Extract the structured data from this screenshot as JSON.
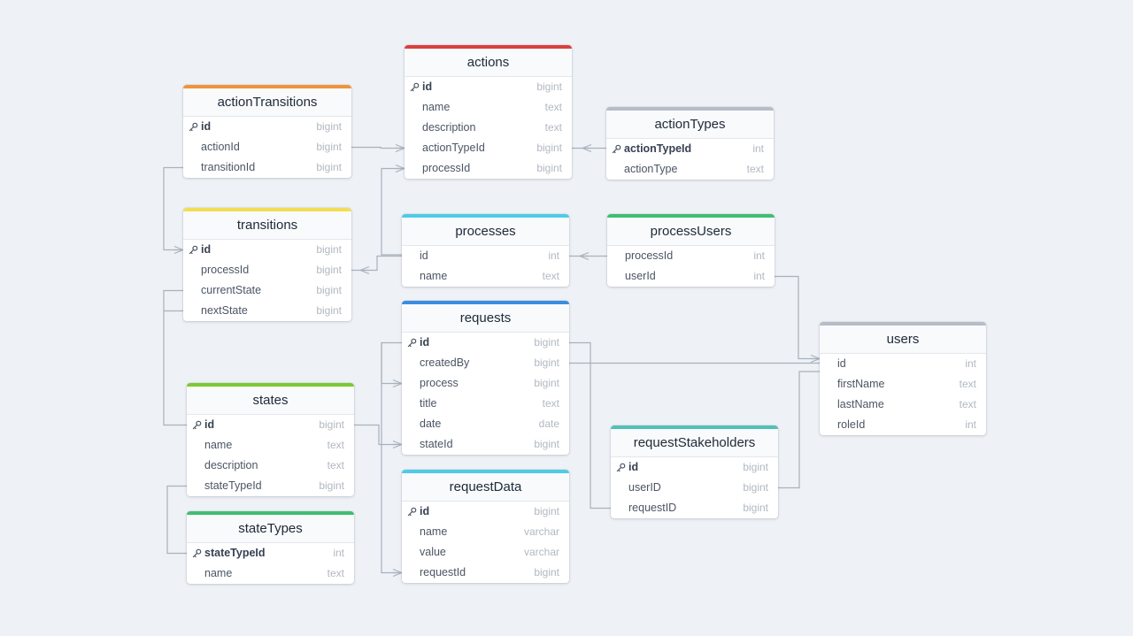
{
  "diagram": {
    "colors": {
      "background": "#eef2f6",
      "connector": "#a8b1bc"
    },
    "tables": [
      {
        "id": "actions",
        "name": "actions",
        "accent": "#dc3f3f",
        "fields": [
          {
            "name": "id",
            "type": "bigint",
            "pk": true
          },
          {
            "name": "name",
            "type": "text"
          },
          {
            "name": "description",
            "type": "text"
          },
          {
            "name": "actionTypeId",
            "type": "bigint"
          },
          {
            "name": "processId",
            "type": "bigint"
          }
        ]
      },
      {
        "id": "actionTransitions",
        "name": "actionTransitions",
        "accent": "#f0933e",
        "fields": [
          {
            "name": "id",
            "type": "bigint",
            "pk": true
          },
          {
            "name": "actionId",
            "type": "bigint"
          },
          {
            "name": "transitionId",
            "type": "bigint"
          }
        ]
      },
      {
        "id": "actionTypes",
        "name": "actionTypes",
        "accent": "#b6bdc6",
        "fields": [
          {
            "name": "actionTypeId",
            "type": "int",
            "pk": true
          },
          {
            "name": "actionType",
            "type": "text"
          }
        ]
      },
      {
        "id": "transitions",
        "name": "transitions",
        "accent": "#f3dd52",
        "fields": [
          {
            "name": "id",
            "type": "bigint",
            "pk": true
          },
          {
            "name": "processId",
            "type": "bigint"
          },
          {
            "name": "currentState",
            "type": "bigint"
          },
          {
            "name": "nextState",
            "type": "bigint"
          }
        ]
      },
      {
        "id": "processes",
        "name": "processes",
        "accent": "#4fcbe6",
        "fields": [
          {
            "name": "id",
            "type": "int"
          },
          {
            "name": "name",
            "type": "text"
          }
        ]
      },
      {
        "id": "processUsers",
        "name": "processUsers",
        "accent": "#3fbe73",
        "fields": [
          {
            "name": "processId",
            "type": "int"
          },
          {
            "name": "userId",
            "type": "int"
          }
        ]
      },
      {
        "id": "requests",
        "name": "requests",
        "accent": "#3a8de0",
        "fields": [
          {
            "name": "id",
            "type": "bigint",
            "pk": true
          },
          {
            "name": "createdBy",
            "type": "bigint"
          },
          {
            "name": "process",
            "type": "bigint"
          },
          {
            "name": "title",
            "type": "text"
          },
          {
            "name": "date",
            "type": "date"
          },
          {
            "name": "stateId",
            "type": "bigint"
          }
        ]
      },
      {
        "id": "users",
        "name": "users",
        "accent": "#b6bdc6",
        "fields": [
          {
            "name": "id",
            "type": "int"
          },
          {
            "name": "firstName",
            "type": "text"
          },
          {
            "name": "lastName",
            "type": "text"
          },
          {
            "name": "roleId",
            "type": "int"
          }
        ]
      },
      {
        "id": "states",
        "name": "states",
        "accent": "#7cc832",
        "fields": [
          {
            "name": "id",
            "type": "bigint",
            "pk": true
          },
          {
            "name": "name",
            "type": "text"
          },
          {
            "name": "description",
            "type": "text"
          },
          {
            "name": "stateTypeId",
            "type": "bigint"
          }
        ]
      },
      {
        "id": "requestStakeholders",
        "name": "requestStakeholders",
        "accent": "#52c0b6",
        "fields": [
          {
            "name": "id",
            "type": "bigint",
            "pk": true
          },
          {
            "name": "userID",
            "type": "bigint"
          },
          {
            "name": "requestID",
            "type": "bigint"
          }
        ]
      },
      {
        "id": "requestData",
        "name": "requestData",
        "accent": "#4fcbe6",
        "fields": [
          {
            "name": "id",
            "type": "bigint",
            "pk": true
          },
          {
            "name": "name",
            "type": "varchar"
          },
          {
            "name": "value",
            "type": "varchar"
          },
          {
            "name": "requestId",
            "type": "bigint"
          }
        ]
      },
      {
        "id": "stateTypes",
        "name": "stateTypes",
        "accent": "#3fbe73",
        "fields": [
          {
            "name": "stateTypeId",
            "type": "int",
            "pk": true
          },
          {
            "name": "name",
            "type": "text"
          }
        ]
      }
    ],
    "relationships": [
      {
        "from": "actionTransitions.actionId",
        "to": "actions.id"
      },
      {
        "from": "actionTransitions.transitionId",
        "to": "transitions.id"
      },
      {
        "from": "actions.actionTypeId",
        "to": "actionTypes.actionTypeId"
      },
      {
        "from": "actions.processId",
        "to": "processes.id"
      },
      {
        "from": "transitions.processId",
        "to": "processes.id"
      },
      {
        "from": "transitions.currentState",
        "to": "states.id"
      },
      {
        "from": "transitions.nextState",
        "to": "states.id"
      },
      {
        "from": "processUsers.processId",
        "to": "processes.id"
      },
      {
        "from": "processUsers.userId",
        "to": "users.id"
      },
      {
        "from": "requests.process",
        "to": "processes.id"
      },
      {
        "from": "requests.createdBy",
        "to": "users.id"
      },
      {
        "from": "requests.stateId",
        "to": "states.id"
      },
      {
        "from": "requestStakeholders.userID",
        "to": "users.id"
      },
      {
        "from": "requestStakeholders.requestID",
        "to": "requests.id"
      },
      {
        "from": "requestData.requestId",
        "to": "requests.id"
      },
      {
        "from": "states.stateTypeId",
        "to": "stateTypes.stateTypeId"
      }
    ]
  }
}
